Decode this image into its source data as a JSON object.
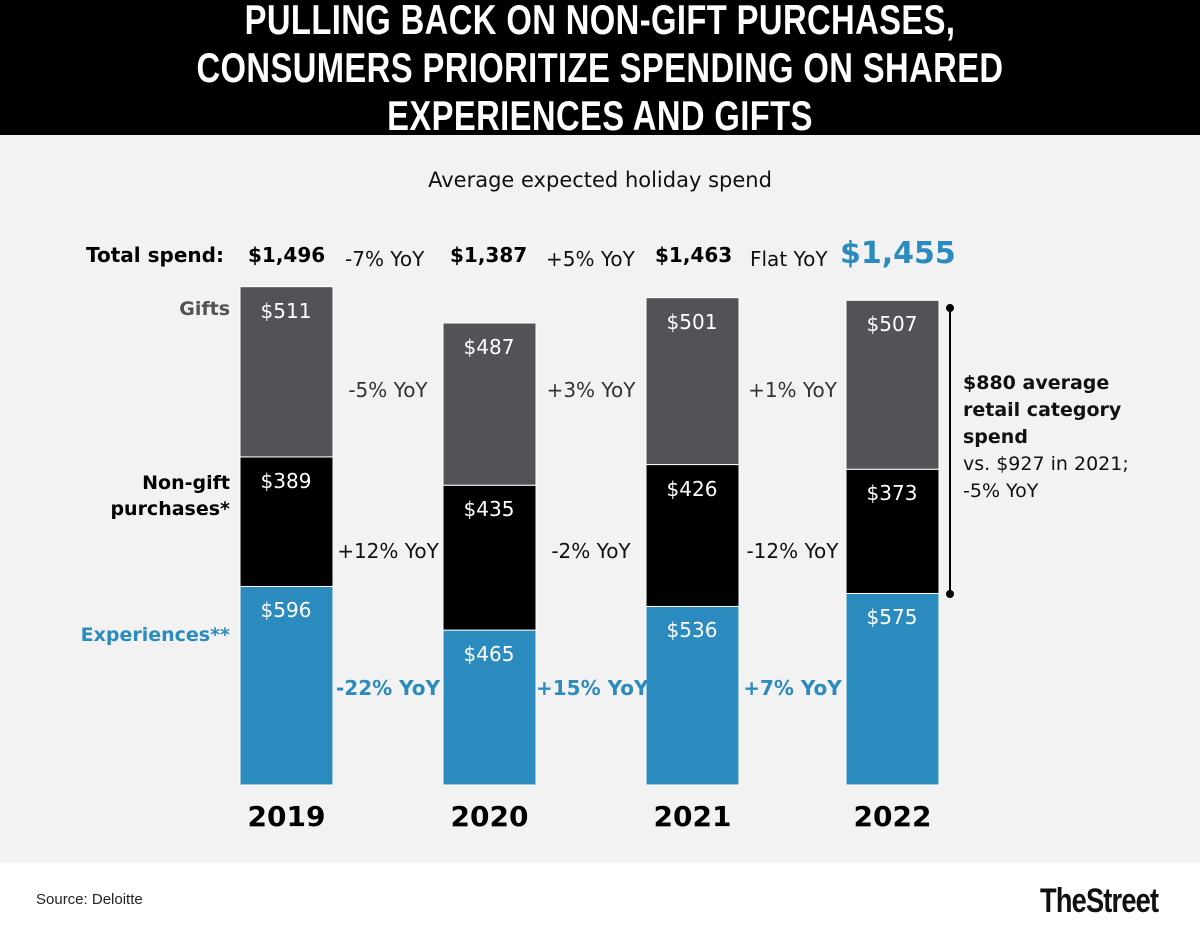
{
  "title": "PULLING BACK ON NON-GIFT PURCHASES, CONSUMERS PRIORITIZE SPENDING ON SHARED EXPERIENCES AND GIFTS",
  "source": "Source: Deloitte",
  "logo": "TheStreet",
  "chart_data": {
    "type": "bar",
    "stacked": true,
    "title": "Average expected holiday spend",
    "categories": [
      "2019",
      "2020",
      "2021",
      "2022"
    ],
    "series": [
      {
        "name": "Experiences**",
        "color": "#2b8bbf",
        "values": [
          596,
          465,
          536,
          575
        ],
        "yoy": [
          "-22% YoY",
          "+15% YoY",
          "+7% YoY"
        ]
      },
      {
        "name": "Non-gift purchases*",
        "color": "#000000",
        "values": [
          389,
          435,
          426,
          373
        ],
        "yoy": [
          "+12% YoY",
          "-2% YoY",
          "-12% YoY"
        ]
      },
      {
        "name": "Gifts",
        "color": "#515357",
        "values": [
          511,
          487,
          501,
          507
        ],
        "yoy": [
          "-5% YoY",
          "+3% YoY",
          "+1% YoY"
        ]
      }
    ],
    "value_labels": [
      [
        "$596",
        "$465",
        "$536",
        "$575"
      ],
      [
        "$389",
        "$435",
        "$426",
        "$373"
      ],
      [
        "$511",
        "$487",
        "$501",
        "$507"
      ]
    ],
    "total_label": "Total spend:",
    "totals": [
      "$1,496",
      "$1,387",
      "$1,463",
      "$1,455"
    ],
    "total_yoy": [
      "-7% YoY",
      "+5% YoY",
      "Flat YoY"
    ],
    "highlight_color": "#2b8bbf",
    "annotation": {
      "headline": [
        "$880 average",
        "retail category",
        "spend"
      ],
      "detail": [
        "vs. $927 in 2021;",
        "-5% YoY"
      ]
    }
  }
}
